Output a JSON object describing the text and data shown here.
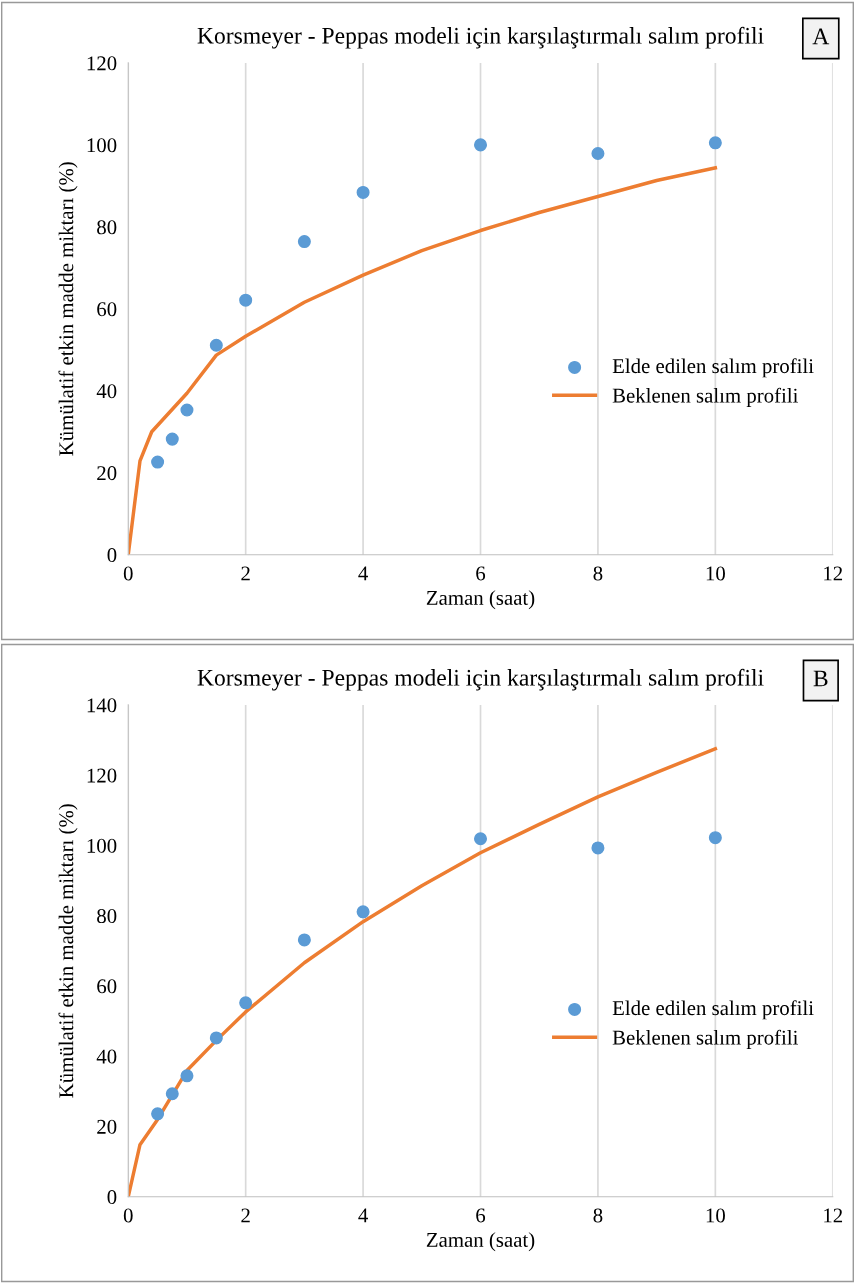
{
  "chart_data": [
    {
      "type": "scatter",
      "title": "Korsmeyer - Peppas modeli için karşılaştırmalı salım profili",
      "xlabel": "Zaman (saat)",
      "ylabel": "Kümülatif etkin madde miktarı (%)",
      "annotations": [
        "A"
      ],
      "xlim": [
        0,
        12
      ],
      "xticks": [
        0,
        2,
        4,
        6,
        8,
        10,
        12
      ],
      "ylim": [
        0,
        120
      ],
      "yticks": [
        0,
        20,
        40,
        60,
        80,
        100,
        120
      ],
      "grid": "x",
      "legend": "right",
      "series": [
        {
          "name": "Elde edilen salım profili",
          "marker": "circle",
          "color": "#5b9bd5",
          "x": [
            0.5,
            0.75,
            1,
            1.5,
            2,
            3,
            4,
            6,
            8,
            10
          ],
          "values": [
            22.6,
            28.2,
            35.3,
            51.1,
            62.1,
            76.4,
            88.4,
            100,
            97.9,
            100.5
          ]
        },
        {
          "name": "Beklenen salım profili",
          "type": "line",
          "marker": "none",
          "color": "#ed7d31",
          "x": [
            0,
            0.2,
            0.4,
            1,
            1.5,
            2,
            3,
            4,
            5,
            6,
            7,
            8,
            9,
            10
          ],
          "values": [
            0,
            22.9,
            30,
            39.4,
            48.7,
            53.3,
            61.6,
            68.2,
            74.2,
            79.1,
            83.5,
            87.4,
            91.3,
            94.4
          ]
        }
      ]
    },
    {
      "type": "scatter",
      "title": "Korsmeyer - Peppas modeli için karşılaştırmalı salım profili",
      "xlabel": "Zaman (saat)",
      "ylabel": "Kümülatif etkin madde miktarı (%)",
      "annotations": [
        "B"
      ],
      "xlim": [
        0,
        12
      ],
      "xticks": [
        0,
        2,
        4,
        6,
        8,
        10,
        12
      ],
      "ylim": [
        0,
        140
      ],
      "yticks": [
        0,
        20,
        40,
        60,
        80,
        100,
        120,
        140
      ],
      "grid": "x",
      "legend": "right",
      "series": [
        {
          "name": "Elde edilen salım profili",
          "marker": "circle",
          "color": "#5b9bd5",
          "x": [
            0.5,
            0.75,
            1,
            1.5,
            2,
            3,
            4,
            6,
            8,
            10
          ],
          "values": [
            23.6,
            29.3,
            34.4,
            45.2,
            55.2,
            73.1,
            81.1,
            101.9,
            99.3,
            102.2
          ]
        },
        {
          "name": "Beklenen salım profili",
          "type": "line",
          "marker": "none",
          "color": "#ed7d31",
          "x": [
            0,
            0.2,
            0.5,
            1,
            1.5,
            2,
            3,
            4,
            5,
            6,
            7,
            8,
            9,
            10
          ],
          "values": [
            0,
            14.8,
            22,
            35.9,
            44.5,
            52.6,
            66.6,
            78.3,
            88.5,
            97.9,
            106,
            113.8,
            120.8,
            127.5
          ]
        }
      ]
    }
  ]
}
